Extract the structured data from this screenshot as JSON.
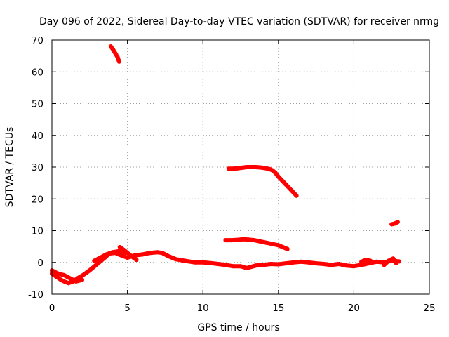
{
  "chart_data": {
    "type": "scatter",
    "title": "Day 096 of 2022, Sidereal Day-to-day VTEC variation (SDTVAR) for receiver nrmg",
    "xlabel": "GPS time / hours",
    "ylabel": "SDTVAR / TECUs",
    "xlim": [
      0,
      25
    ],
    "ylim": [
      -10,
      70
    ],
    "xticks": [
      "0",
      "5",
      "10",
      "15",
      "20",
      "25"
    ],
    "yticks": [
      "-10",
      "0",
      "10",
      "20",
      "30",
      "40",
      "50",
      "60",
      "70"
    ],
    "grid": true,
    "legend": "none",
    "series_color": "#ff0000",
    "series": [
      {
        "name": "track-1",
        "x": [
          0.0,
          0.3,
          0.6,
          0.9,
          1.1,
          1.4,
          1.7,
          2.0,
          2.5,
          3.0,
          3.5,
          3.8,
          4.2,
          4.6,
          5.0,
          5.5,
          6.0,
          6.5,
          7.0,
          7.3,
          7.7,
          8.2,
          8.8,
          9.5,
          10.0,
          10.5,
          11.0,
          11.5,
          12.0,
          12.5,
          12.9,
          13.5,
          14.0,
          14.5,
          15.0,
          15.5,
          16.0,
          16.5,
          17.0,
          17.5,
          18.0,
          18.5,
          19.0,
          19.5,
          20.0,
          20.5,
          21.0,
          21.5,
          22.0,
          22.5,
          23.0
        ],
        "y": [
          -3.5,
          -4.5,
          -5.5,
          -6.2,
          -6.5,
          -6.0,
          -5.0,
          -4.2,
          -2.5,
          -0.5,
          1.5,
          2.8,
          3.0,
          2.2,
          1.5,
          2.2,
          2.5,
          3.0,
          3.2,
          3.0,
          2.0,
          1.0,
          0.5,
          0.0,
          0.0,
          -0.2,
          -0.5,
          -0.8,
          -1.2,
          -1.2,
          -1.8,
          -1.0,
          -0.8,
          -0.5,
          -0.6,
          -0.3,
          0.0,
          0.2,
          0.0,
          -0.3,
          -0.5,
          -0.8,
          -0.5,
          -1.0,
          -1.2,
          -0.8,
          -0.3,
          0.2,
          0.0,
          0.5,
          0.3
        ]
      },
      {
        "name": "track-2",
        "x": [
          0.0,
          0.4,
          0.8,
          1.2,
          1.6,
          2.0
        ],
        "y": [
          -2.5,
          -3.5,
          -4.0,
          -5.0,
          -6.0,
          -5.5
        ]
      },
      {
        "name": "track-3",
        "x": [
          2.8,
          3.2,
          3.6,
          4.0,
          4.4,
          4.8
        ],
        "y": [
          0.5,
          1.5,
          2.5,
          3.2,
          3.5,
          3.0
        ]
      },
      {
        "name": "track-4",
        "x": [
          3.9,
          4.05,
          4.2,
          4.35,
          4.45
        ],
        "y": [
          68.0,
          67.0,
          65.8,
          64.6,
          63.2
        ]
      },
      {
        "name": "track-5",
        "x": [
          4.5,
          4.8,
          5.1,
          5.4,
          5.6
        ],
        "y": [
          4.8,
          3.8,
          2.6,
          1.5,
          0.8
        ]
      },
      {
        "name": "track-6",
        "x": [
          11.7,
          12.0,
          12.3,
          12.6,
          12.9,
          13.2,
          13.5,
          13.8,
          14.1,
          14.4,
          14.6,
          14.8,
          15.0,
          15.3,
          15.6,
          15.9,
          16.2
        ],
        "y": [
          29.5,
          29.5,
          29.6,
          29.8,
          30.0,
          30.0,
          30.0,
          29.9,
          29.7,
          29.4,
          29.0,
          28.2,
          27.0,
          25.5,
          24.0,
          22.5,
          21.0
        ]
      },
      {
        "name": "track-7",
        "x": [
          11.5,
          11.9,
          12.3,
          12.7,
          13.0,
          13.4,
          13.8,
          14.2,
          14.6,
          15.0,
          15.3,
          15.6
        ],
        "y": [
          7.0,
          7.0,
          7.1,
          7.3,
          7.2,
          7.0,
          6.6,
          6.2,
          5.8,
          5.4,
          4.8,
          4.2
        ]
      },
      {
        "name": "track-8",
        "x": [
          20.5,
          20.8,
          21.1
        ],
        "y": [
          0.2,
          0.8,
          0.5
        ]
      },
      {
        "name": "track-9",
        "x": [
          22.5,
          22.7,
          22.9
        ],
        "y": [
          12.0,
          12.2,
          12.7
        ]
      },
      {
        "name": "track-10",
        "x": [
          22.0,
          22.3,
          22.6,
          22.8
        ],
        "y": [
          -0.8,
          0.5,
          1.2,
          -0.2
        ]
      }
    ]
  }
}
